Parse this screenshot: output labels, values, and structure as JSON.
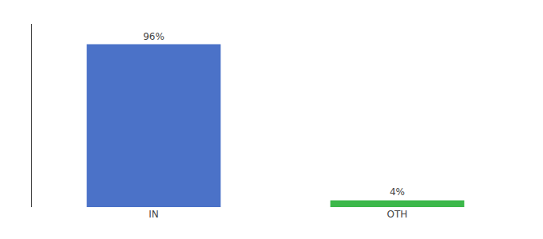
{
  "chart_data": {
    "type": "bar",
    "categories": [
      "IN",
      "OTH"
    ],
    "values": [
      96,
      4
    ],
    "value_labels": [
      "96%",
      "4%"
    ],
    "colors": [
      "#4b72c8",
      "#3cb84a"
    ],
    "ylim": [
      0,
      108
    ],
    "data_labels": true,
    "tick_labels": "x",
    "grid": false
  }
}
